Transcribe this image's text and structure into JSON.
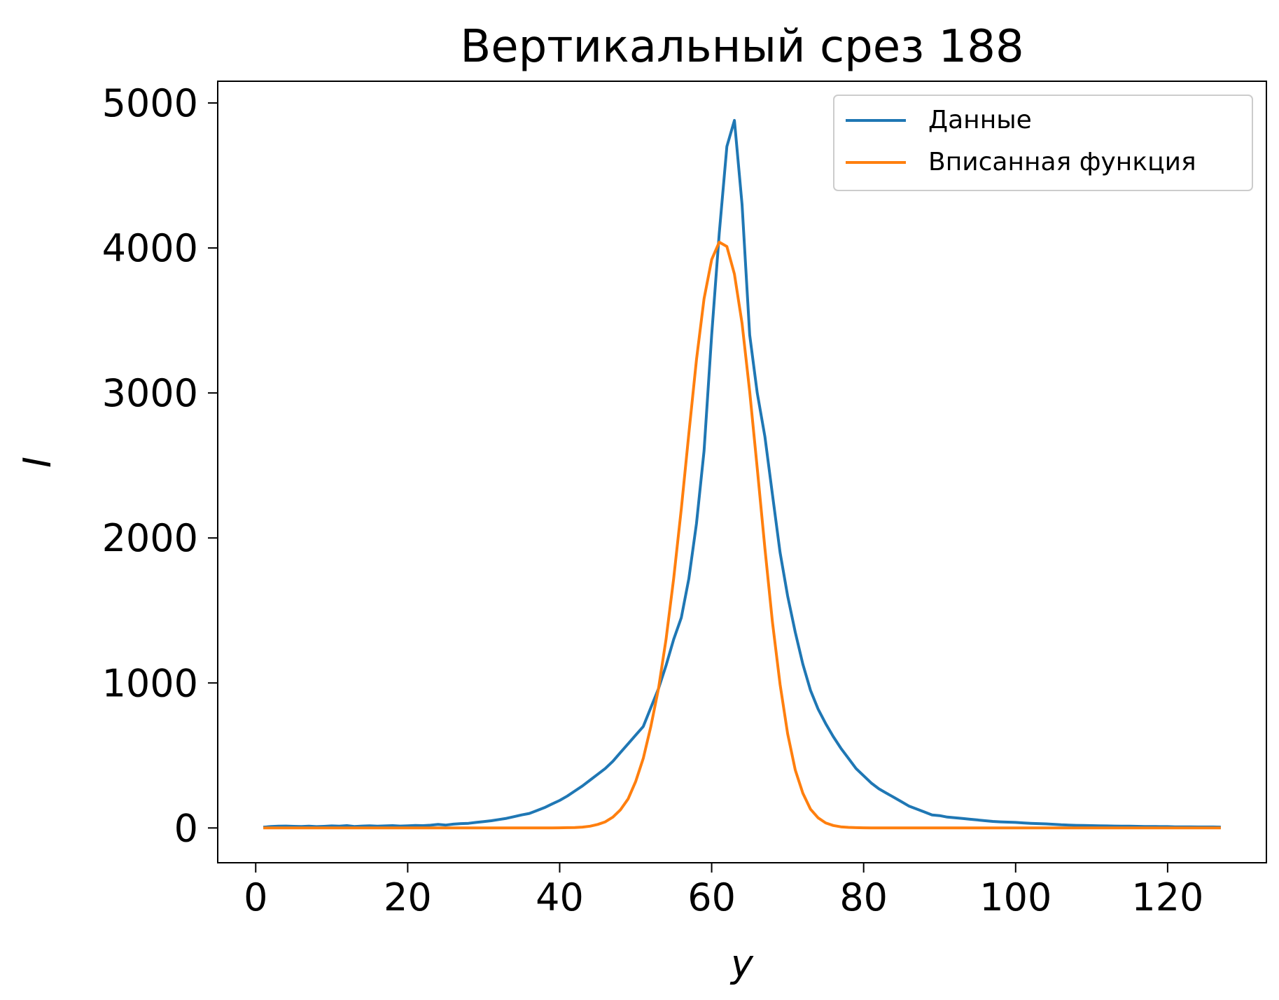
{
  "chart_data": {
    "type": "line",
    "title": "Вертикальный срез 188",
    "xlabel": "y",
    "ylabel": "I",
    "xlim": [
      -5,
      133
    ],
    "ylim": [
      -240,
      5150
    ],
    "xticks": [
      0,
      20,
      40,
      60,
      80,
      100,
      120
    ],
    "xtick_labels": [
      "0",
      "20",
      "40",
      "60",
      "80",
      "100",
      "120"
    ],
    "yticks": [
      0,
      1000,
      2000,
      3000,
      4000,
      5000
    ],
    "ytick_labels": [
      "0",
      "1000",
      "2000",
      "3000",
      "4000",
      "5000"
    ],
    "grid": false,
    "legend_position": "upper-right",
    "series": [
      {
        "name": "Данные",
        "color": "#1f77b4",
        "x": [
          1,
          2,
          3,
          4,
          5,
          6,
          7,
          8,
          9,
          10,
          11,
          12,
          13,
          14,
          15,
          16,
          17,
          18,
          19,
          20,
          21,
          22,
          23,
          24,
          25,
          26,
          27,
          28,
          29,
          30,
          31,
          32,
          33,
          34,
          35,
          36,
          37,
          38,
          39,
          40,
          41,
          42,
          43,
          44,
          45,
          46,
          47,
          48,
          49,
          50,
          51,
          52,
          53,
          54,
          55,
          56,
          57,
          58,
          59,
          60,
          61,
          62,
          63,
          64,
          65,
          66,
          67,
          68,
          69,
          70,
          71,
          72,
          73,
          74,
          75,
          76,
          77,
          78,
          79,
          80,
          81,
          82,
          83,
          84,
          85,
          86,
          87,
          88,
          89,
          90,
          91,
          92,
          93,
          94,
          95,
          96,
          97,
          98,
          99,
          100,
          101,
          102,
          103,
          104,
          105,
          106,
          107,
          108,
          109,
          110,
          111,
          112,
          113,
          114,
          115,
          116,
          117,
          118,
          119,
          120,
          121,
          122,
          123,
          124,
          125,
          126,
          127
        ],
        "values": [
          5,
          10,
          12,
          13,
          11,
          10,
          12,
          9,
          11,
          14,
          12,
          16,
          10,
          13,
          15,
          12,
          14,
          16,
          13,
          15,
          17,
          16,
          19,
          24,
          20,
          26,
          30,
          32,
          38,
          44,
          50,
          58,
          66,
          78,
          90,
          100,
          120,
          140,
          165,
          190,
          220,
          255,
          290,
          330,
          370,
          410,
          460,
          520,
          580,
          640,
          700,
          830,
          960,
          1120,
          1300,
          1450,
          1720,
          2100,
          2600,
          3400,
          4100,
          4700,
          4880,
          4300,
          3400,
          3000,
          2700,
          2300,
          1900,
          1600,
          1350,
          1130,
          950,
          820,
          720,
          630,
          550,
          480,
          410,
          360,
          310,
          270,
          240,
          210,
          180,
          150,
          130,
          110,
          90,
          85,
          75,
          70,
          65,
          60,
          55,
          50,
          45,
          42,
          40,
          38,
          35,
          32,
          30,
          28,
          25,
          22,
          20,
          18,
          17,
          16,
          15,
          14,
          13,
          12,
          12,
          11,
          10,
          10,
          9,
          9,
          8,
          8,
          8,
          7,
          7,
          7,
          6
        ]
      },
      {
        "name": "Вписанная функция",
        "color": "#ff7f0e",
        "x": [
          1,
          2,
          3,
          4,
          5,
          6,
          7,
          8,
          9,
          10,
          11,
          12,
          13,
          14,
          15,
          16,
          17,
          18,
          19,
          20,
          21,
          22,
          23,
          24,
          25,
          26,
          27,
          28,
          29,
          30,
          31,
          32,
          33,
          34,
          35,
          36,
          37,
          38,
          39,
          40,
          41,
          42,
          43,
          44,
          45,
          46,
          47,
          48,
          49,
          50,
          51,
          52,
          53,
          54,
          55,
          56,
          57,
          58,
          59,
          60,
          61,
          62,
          63,
          64,
          65,
          66,
          67,
          68,
          69,
          70,
          71,
          72,
          73,
          74,
          75,
          76,
          77,
          78,
          79,
          80,
          81,
          82,
          83,
          84,
          85,
          86,
          87,
          88,
          89,
          90,
          91,
          92,
          93,
          94,
          95,
          96,
          97,
          98,
          99,
          100,
          101,
          102,
          103,
          104,
          105,
          106,
          107,
          108,
          109,
          110,
          111,
          112,
          113,
          114,
          115,
          116,
          117,
          118,
          119,
          120,
          121,
          122,
          123,
          124,
          125,
          126,
          127
        ],
        "values": [
          0,
          0,
          0,
          0,
          0,
          0,
          0,
          0,
          0,
          0,
          0,
          0,
          0,
          0,
          0,
          0,
          0,
          0,
          0,
          0,
          0,
          0,
          0,
          0,
          0,
          0,
          0,
          0,
          0,
          0,
          0,
          0,
          0,
          0,
          0,
          0,
          0,
          0,
          0,
          1,
          2,
          3,
          6,
          12,
          24,
          42,
          75,
          125,
          200,
          320,
          480,
          700,
          960,
          1300,
          1720,
          2200,
          2720,
          3230,
          3650,
          3920,
          4040,
          4010,
          3820,
          3480,
          3010,
          2480,
          1930,
          1420,
          990,
          650,
          400,
          240,
          130,
          70,
          35,
          17,
          8,
          4,
          2,
          1,
          0,
          0,
          0,
          0,
          0,
          0,
          0,
          0,
          0,
          0,
          0,
          0,
          0,
          0,
          0,
          0,
          0,
          0,
          0,
          0,
          0,
          0,
          0,
          0,
          0,
          0,
          0,
          0,
          0,
          0,
          0,
          0,
          0,
          0,
          0,
          0,
          0,
          0,
          0,
          0,
          0,
          0,
          0,
          0,
          0,
          0,
          0
        ]
      }
    ]
  }
}
